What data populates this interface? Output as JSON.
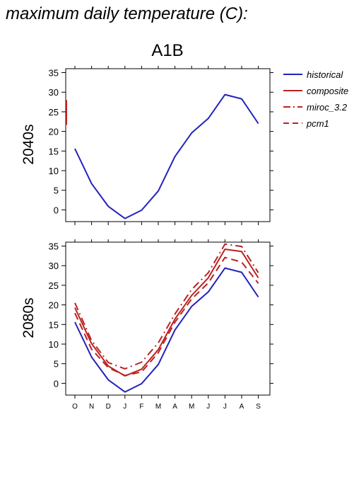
{
  "figure": {
    "title": "maximum daily temperature (C):",
    "scenario": "A1B"
  },
  "chart_data": [
    {
      "type": "line",
      "panel_label": "2040s",
      "x": [
        "O",
        "N",
        "D",
        "J",
        "F",
        "M",
        "A",
        "M",
        "J",
        "J",
        "A",
        "S"
      ],
      "ylim": [
        -3,
        36
      ],
      "yticks": [
        0,
        5,
        10,
        15,
        20,
        25,
        30,
        35
      ],
      "series": [
        {
          "name": "historical",
          "color": "#2222bb",
          "dash": "solid",
          "values": [
            15.6,
            6.7,
            0.9,
            -2.2,
            -0.1,
            4.8,
            13.6,
            19.6,
            23.3,
            29.4,
            28.3,
            22.0
          ]
        }
      ],
      "note_marks": [
        {
          "series": "composite",
          "color": "#bb2222",
          "y_range": [
            21.7,
            28.0
          ],
          "at": "left-edge"
        }
      ]
    },
    {
      "type": "line",
      "panel_label": "2080s",
      "x": [
        "O",
        "N",
        "D",
        "J",
        "F",
        "M",
        "A",
        "M",
        "J",
        "J",
        "A",
        "S"
      ],
      "ylim": [
        -3,
        36
      ],
      "yticks": [
        0,
        5,
        10,
        15,
        20,
        25,
        30,
        35
      ],
      "series": [
        {
          "name": "historical",
          "color": "#2222bb",
          "dash": "solid",
          "values": [
            15.6,
            6.7,
            0.9,
            -2.2,
            -0.1,
            4.8,
            13.6,
            19.6,
            23.3,
            29.4,
            28.3,
            22.0
          ]
        },
        {
          "name": "composite",
          "color": "#bb2222",
          "dash": "solid",
          "values": [
            19.3,
            10.1,
            4.4,
            1.9,
            3.6,
            8.6,
            16.4,
            22.4,
            26.9,
            34.2,
            33.6,
            26.9
          ]
        },
        {
          "name": "miroc_3.2",
          "color": "#bb2222",
          "dash": "dashdot",
          "values": [
            20.5,
            10.9,
            5.3,
            3.7,
            5.4,
            10.3,
            17.7,
            23.9,
            28.2,
            35.5,
            34.9,
            28.2
          ]
        },
        {
          "name": "pcm1",
          "color": "#bb2222",
          "dash": "dashed",
          "values": [
            17.9,
            8.7,
            4.0,
            2.0,
            2.9,
            7.8,
            15.6,
            21.5,
            25.6,
            32.1,
            30.9,
            25.5
          ]
        }
      ]
    }
  ],
  "legend": {
    "placement": "right",
    "entries": [
      {
        "label": "historical",
        "color": "#2222bb",
        "dash": "solid"
      },
      {
        "label": "composite",
        "color": "#bb2222",
        "dash": "solid"
      },
      {
        "label": "miroc_3.2",
        "color": "#bb2222",
        "dash": "dashdot"
      },
      {
        "label": "pcm1",
        "color": "#bb2222",
        "dash": "dashed"
      }
    ]
  }
}
